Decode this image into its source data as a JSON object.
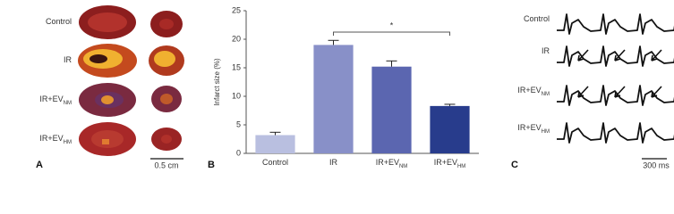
{
  "panel_a": {
    "letter": "A",
    "labels": [
      {
        "text": "Control"
      },
      {
        "text": "IR"
      },
      {
        "text": "IR+EV",
        "sub": "NM"
      },
      {
        "text": "IR+EV",
        "sub": "HM"
      }
    ],
    "scale": "0.5 cm"
  },
  "chart_data": {
    "type": "bar",
    "letter": "B",
    "ylabel": "Infarct size (%)",
    "categories": [
      "Control",
      "IR",
      "IR+EV",
      "IR+EV"
    ],
    "category_subscripts": [
      null,
      null,
      "NM",
      "HM"
    ],
    "values": [
      3.2,
      19,
      15.2,
      8.3
    ],
    "errors": [
      0.5,
      0.8,
      1.0,
      0.3
    ],
    "colors": [
      "#b9bfe0",
      "#8890c8",
      "#5b66b0",
      "#283c8c"
    ],
    "ylim": [
      0,
      25
    ],
    "yticks": [
      0,
      5,
      10,
      15,
      20,
      25
    ],
    "annotation": "*"
  },
  "panel_c": {
    "letter": "C",
    "labels": [
      {
        "text": "Control"
      },
      {
        "text": "IR"
      },
      {
        "text": "IR+EV",
        "sub": "NM"
      },
      {
        "text": "IR+EV",
        "sub": "HM"
      }
    ],
    "scale": "300 ms"
  }
}
